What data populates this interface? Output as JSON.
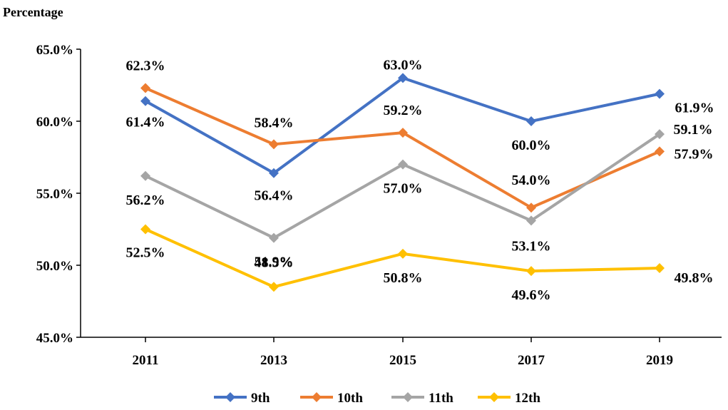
{
  "chart_data": {
    "type": "line",
    "title": "",
    "xlabel": "",
    "ylabel": "Percentage",
    "ylim": [
      45.0,
      65.0
    ],
    "ytick_values": [
      45.0,
      50.0,
      55.0,
      60.0,
      65.0
    ],
    "ytick_labels": [
      "45.0%",
      "50.0%",
      "55.0%",
      "60.0%",
      "65.0%"
    ],
    "categories": [
      "2011",
      "2013",
      "2015",
      "2017",
      "2019"
    ],
    "grid": false,
    "legend_position": "bottom",
    "series": [
      {
        "name": "9th",
        "color": "#4472C4",
        "values": [
          61.4,
          56.4,
          63.0,
          60.0,
          61.9
        ],
        "labels": [
          "61.4%",
          "56.4%",
          "63.0%",
          "60.0%",
          "61.9%"
        ]
      },
      {
        "name": "10th",
        "color": "#ED7D31",
        "values": [
          62.3,
          58.4,
          59.2,
          54.0,
          57.9
        ],
        "labels": [
          "62.3%",
          "58.4%",
          "59.2%",
          "54.0%",
          "57.9%"
        ]
      },
      {
        "name": "11th",
        "color": "#A5A5A5",
        "values": [
          56.2,
          51.9,
          57.0,
          53.1,
          59.1
        ],
        "labels": [
          "56.2%",
          "51.9%",
          "57.0%",
          "53.1%",
          "59.1%"
        ]
      },
      {
        "name": "12th",
        "color": "#FFC000",
        "values": [
          52.5,
          48.5,
          50.8,
          49.6,
          49.8
        ],
        "labels": [
          "52.5%",
          "48.5%",
          "50.8%",
          "49.6%",
          "49.8%"
        ]
      }
    ]
  }
}
